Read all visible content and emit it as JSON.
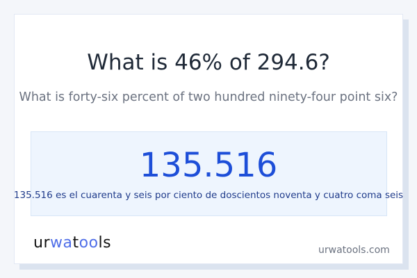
{
  "title": "What is 46% of 294.6?",
  "subtitle": "What is forty-six percent of two hundred ninety-four point six?",
  "result": {
    "value": "135.516",
    "words": "135.516 es el cuarenta y seis por ciento de doscientos noventa y cuatro coma seis"
  },
  "footer": {
    "logo_text": "urwatools",
    "domain": "urwatools.com"
  },
  "colors": {
    "accent": "#1d4ed8",
    "logo_accent": "#4f6ee8"
  }
}
